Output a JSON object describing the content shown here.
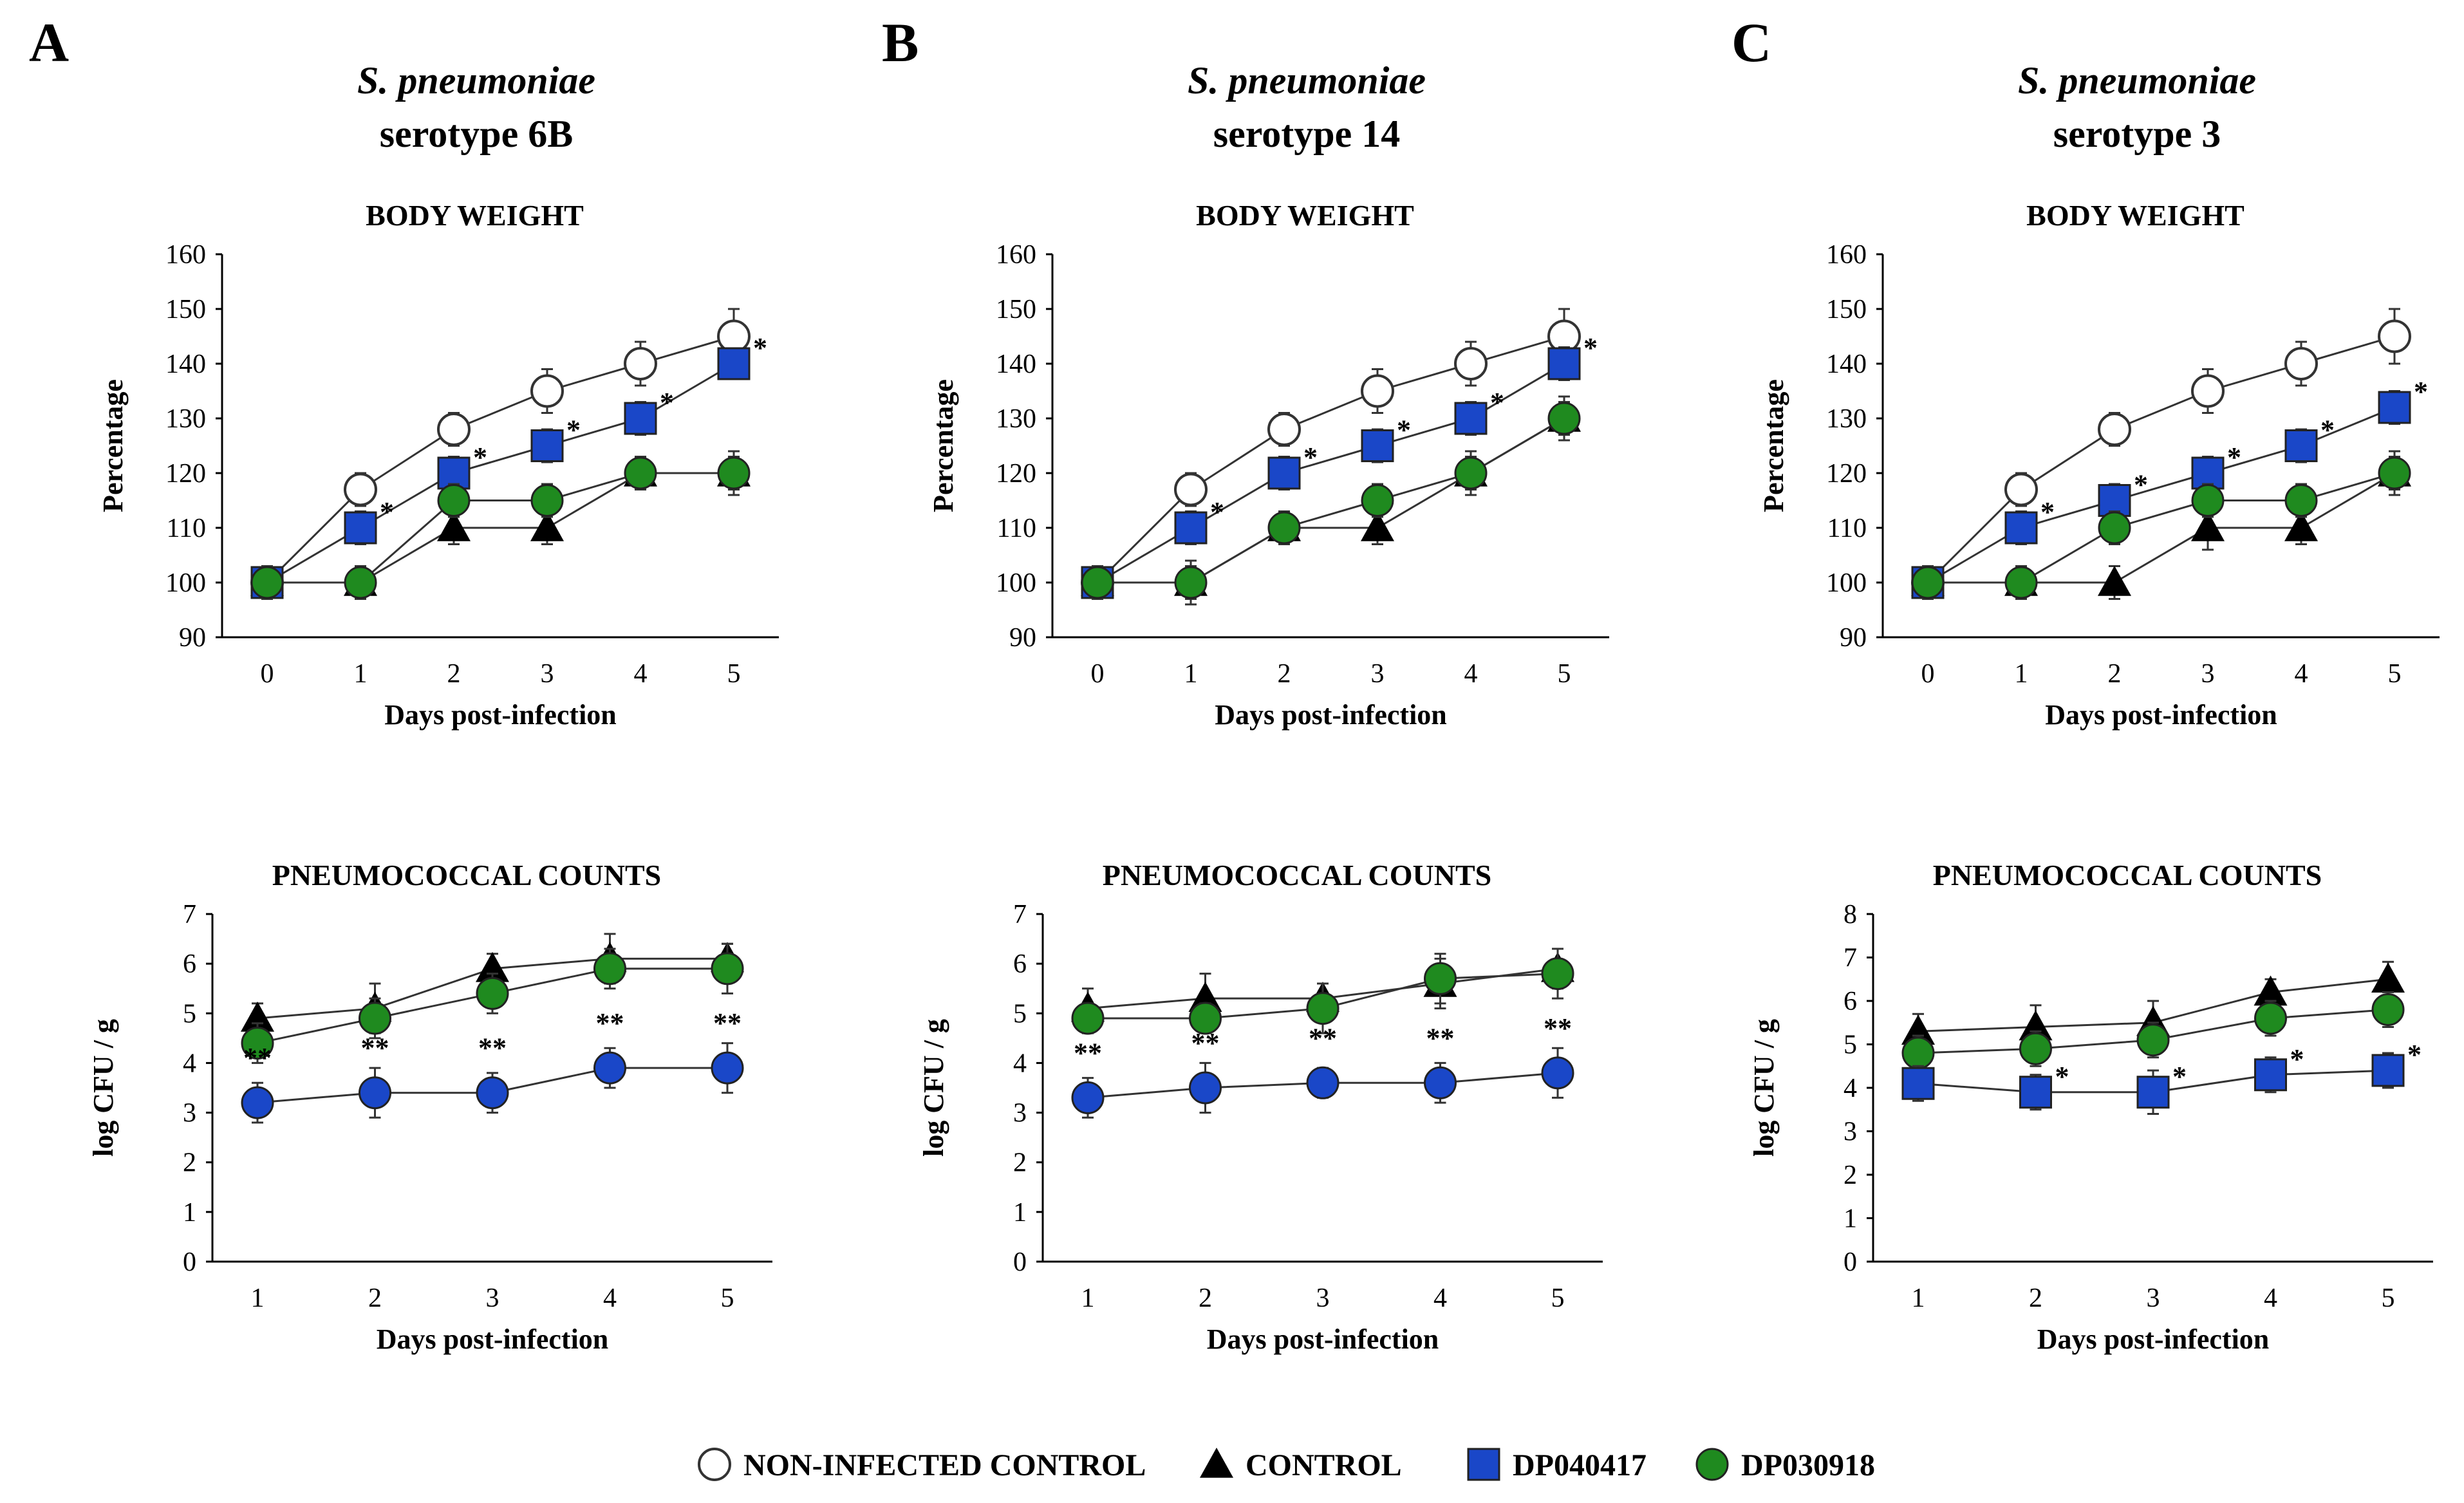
{
  "colors": {
    "axis": "#000000",
    "line": "#333333",
    "non_infected": "#ffffff",
    "control": "#000000",
    "dp040417": "#1a47c8",
    "dp030918": "#1f8a1f"
  },
  "legend": [
    {
      "label": "NON-INFECTED CONTROL",
      "marker": "circle-open-icon"
    },
    {
      "label": "CONTROL",
      "marker": "triangle-icon"
    },
    {
      "label": "DP040417",
      "marker": "square-blue-icon"
    },
    {
      "label": "DP030918",
      "marker": "circle-green-icon"
    }
  ],
  "panels": [
    {
      "letter": "A",
      "organism": "S. pneumoniae",
      "serotype": "serotype 6B"
    },
    {
      "letter": "B",
      "organism": "S. pneumoniae",
      "serotype": "serotype 14"
    },
    {
      "letter": "C",
      "organism": "S. pneumoniae",
      "serotype": "serotype 3"
    }
  ],
  "chart_data": [
    {
      "panel": "A",
      "type": "line",
      "title": "BODY WEIGHT",
      "xlabel": "Days post-infection",
      "ylabel": "Percentage",
      "x": [
        0,
        1,
        2,
        3,
        4,
        5
      ],
      "ylim": [
        90,
        160
      ],
      "yticks": [
        90,
        100,
        110,
        120,
        130,
        140,
        150,
        160
      ],
      "series": [
        {
          "name": "NON-INFECTED CONTROL",
          "marker": "circle-open",
          "values": [
            100,
            117,
            128,
            135,
            140,
            145
          ],
          "errors": [
            3,
            3,
            3,
            4,
            4,
            5
          ]
        },
        {
          "name": "CONTROL",
          "marker": "triangle",
          "values": [
            100,
            100,
            110,
            110,
            120,
            120
          ],
          "errors": [
            3,
            3,
            3,
            3,
            3,
            4
          ]
        },
        {
          "name": "DP040417",
          "marker": "square",
          "values": [
            100,
            110,
            120,
            125,
            130,
            140
          ],
          "errors": [
            3,
            3,
            3,
            3,
            3,
            2
          ],
          "significance": [
            "",
            "*",
            "*",
            "*",
            "*",
            "*"
          ]
        },
        {
          "name": "DP030918",
          "marker": "circle-green",
          "values": [
            100,
            100,
            115,
            115,
            120,
            120
          ],
          "errors": [
            3,
            3,
            3,
            3,
            3,
            3
          ]
        }
      ]
    },
    {
      "panel": "A",
      "type": "line",
      "title": "PNEUMOCOCCAL COUNTS",
      "xlabel": "Days post-infection",
      "ylabel": "log CFU / g",
      "x": [
        1,
        2,
        3,
        4,
        5
      ],
      "ylim": [
        0,
        7
      ],
      "yticks": [
        0,
        1,
        2,
        3,
        4,
        5,
        6,
        7
      ],
      "series": [
        {
          "name": "CONTROL",
          "marker": "triangle",
          "values": [
            4.9,
            5.1,
            5.9,
            6.1,
            6.1
          ],
          "errors": [
            0.3,
            0.5,
            0.3,
            0.5,
            0.3
          ]
        },
        {
          "name": "DP030918",
          "marker": "circle-green",
          "values": [
            4.4,
            4.9,
            5.4,
            5.9,
            5.9
          ],
          "errors": [
            0.4,
            0.4,
            0.4,
            0.4,
            0.5
          ]
        },
        {
          "name": "DP040417",
          "marker": "circle-blue",
          "values": [
            3.2,
            3.4,
            3.4,
            3.9,
            3.9
          ],
          "errors": [
            0.4,
            0.5,
            0.4,
            0.4,
            0.5
          ],
          "significance": [
            "**",
            "**",
            "**",
            "**",
            "**"
          ]
        }
      ]
    },
    {
      "panel": "B",
      "type": "line",
      "title": "BODY WEIGHT",
      "xlabel": "Days post-infection",
      "ylabel": "Percentage",
      "x": [
        0,
        1,
        2,
        3,
        4,
        5
      ],
      "ylim": [
        90,
        160
      ],
      "yticks": [
        90,
        100,
        110,
        120,
        130,
        140,
        150,
        160
      ],
      "series": [
        {
          "name": "NON-INFECTED CONTROL",
          "marker": "circle-open",
          "values": [
            100,
            117,
            128,
            135,
            140,
            145
          ],
          "errors": [
            3,
            3,
            3,
            4,
            4,
            5
          ]
        },
        {
          "name": "CONTROL",
          "marker": "triangle",
          "values": [
            100,
            100,
            110,
            110,
            120,
            130
          ],
          "errors": [
            3,
            3,
            3,
            3,
            3,
            4
          ]
        },
        {
          "name": "DP040417",
          "marker": "square",
          "values": [
            100,
            110,
            120,
            125,
            130,
            140
          ],
          "errors": [
            3,
            3,
            3,
            3,
            3,
            3
          ],
          "significance": [
            "",
            "*",
            "*",
            "*",
            "*",
            "*"
          ]
        },
        {
          "name": "DP030918",
          "marker": "circle-green",
          "values": [
            100,
            100,
            110,
            115,
            120,
            130
          ],
          "errors": [
            3,
            4,
            3,
            3,
            4,
            3
          ]
        }
      ]
    },
    {
      "panel": "B",
      "type": "line",
      "title": "PNEUMOCOCCAL COUNTS",
      "xlabel": "Days post-infection",
      "ylabel": "log CFU / g",
      "x": [
        1,
        2,
        3,
        4,
        5
      ],
      "ylim": [
        0,
        7
      ],
      "yticks": [
        0,
        1,
        2,
        3,
        4,
        5,
        6,
        7
      ],
      "series": [
        {
          "name": "CONTROL",
          "marker": "triangle",
          "values": [
            5.1,
            5.3,
            5.3,
            5.6,
            5.9
          ],
          "errors": [
            0.4,
            0.5,
            0.3,
            0.5,
            0.4
          ]
        },
        {
          "name": "DP030918",
          "marker": "circle-green",
          "values": [
            4.9,
            4.9,
            5.1,
            5.7,
            5.8
          ],
          "errors": [
            0.3,
            0.3,
            0.5,
            0.5,
            0.5
          ]
        },
        {
          "name": "DP040417",
          "marker": "circle-blue",
          "values": [
            3.3,
            3.5,
            3.6,
            3.6,
            3.8
          ],
          "errors": [
            0.4,
            0.5,
            0.3,
            0.4,
            0.5
          ],
          "significance": [
            "**",
            "**",
            "**",
            "**",
            "**"
          ]
        }
      ]
    },
    {
      "panel": "C",
      "type": "line",
      "title": "BODY WEIGHT",
      "xlabel": "Days post-infection",
      "ylabel": "Percentage",
      "x": [
        0,
        1,
        2,
        3,
        4,
        5
      ],
      "ylim": [
        90,
        160
      ],
      "yticks": [
        90,
        100,
        110,
        120,
        130,
        140,
        150,
        160
      ],
      "series": [
        {
          "name": "NON-INFECTED CONTROL",
          "marker": "circle-open",
          "values": [
            100,
            117,
            128,
            135,
            140,
            145
          ],
          "errors": [
            3,
            3,
            3,
            4,
            4,
            5
          ]
        },
        {
          "name": "CONTROL",
          "marker": "triangle",
          "values": [
            100,
            100,
            100,
            110,
            110,
            120
          ],
          "errors": [
            3,
            3,
            3,
            4,
            3,
            4
          ]
        },
        {
          "name": "DP040417",
          "marker": "square",
          "values": [
            100,
            110,
            115,
            120,
            125,
            132
          ],
          "errors": [
            3,
            3,
            3,
            3,
            3,
            3
          ],
          "significance": [
            "",
            "*",
            "*",
            "*",
            "*",
            "*"
          ]
        },
        {
          "name": "DP030918",
          "marker": "circle-green",
          "values": [
            100,
            100,
            110,
            115,
            115,
            120
          ],
          "errors": [
            3,
            3,
            3,
            3,
            3,
            3
          ]
        }
      ]
    },
    {
      "panel": "C",
      "type": "line",
      "title": "PNEUMOCOCCAL COUNTS",
      "xlabel": "Days post-infection",
      "ylabel": "log CFU / g",
      "x": [
        1,
        2,
        3,
        4,
        5
      ],
      "ylim": [
        0,
        8
      ],
      "yticks": [
        0,
        1,
        2,
        3,
        4,
        5,
        6,
        7,
        8
      ],
      "series": [
        {
          "name": "CONTROL",
          "marker": "triangle",
          "values": [
            5.3,
            5.4,
            5.5,
            6.2,
            6.5
          ],
          "errors": [
            0.4,
            0.5,
            0.5,
            0.3,
            0.4
          ]
        },
        {
          "name": "DP030918",
          "marker": "circle-green",
          "values": [
            4.8,
            4.9,
            5.1,
            5.6,
            5.8
          ],
          "errors": [
            0.4,
            0.4,
            0.4,
            0.4,
            0.4
          ]
        },
        {
          "name": "DP040417",
          "marker": "square",
          "values": [
            4.1,
            3.9,
            3.9,
            4.3,
            4.4
          ],
          "errors": [
            0.4,
            0.4,
            0.5,
            0.4,
            0.4
          ],
          "significance": [
            "",
            "*",
            "*",
            "*",
            "*"
          ]
        }
      ]
    }
  ]
}
